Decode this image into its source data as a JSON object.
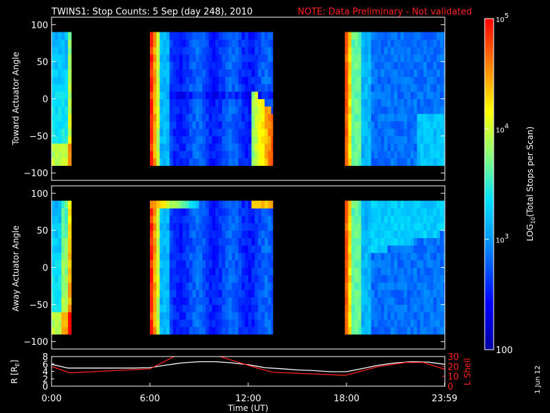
{
  "title": {
    "main": "TWINS1: Stop Counts:  5 Sep (day 248), 2010",
    "note": "NOTE: Data Preliminary - Not validated",
    "note_color": "#ff2020"
  },
  "stamp": "1 Jun 12",
  "chart_data": [
    {
      "type": "heatmap",
      "panel": "toward",
      "ylabel": "Toward Actuator Angle",
      "ylim": [
        -110,
        110
      ],
      "yticks": [
        100,
        50,
        0,
        -50,
        -100
      ],
      "ytick_labels": [
        "100",
        "50",
        "0",
        "−50",
        "−100"
      ],
      "xlim_hours": [
        0,
        24
      ],
      "data_extent_deg": [
        -90,
        90
      ],
      "data_segments_hours": [
        [
          0,
          1.2
        ],
        [
          6.0,
          13.5
        ],
        [
          17.9,
          24.0
        ]
      ],
      "colormap": "rainbow",
      "scale": "log"
    },
    {
      "type": "heatmap",
      "panel": "away",
      "ylabel": "Away Actuator Angle",
      "ylim": [
        -110,
        110
      ],
      "yticks": [
        100,
        50,
        0,
        -50,
        -100
      ],
      "ytick_labels": [
        "100",
        "50",
        "0",
        "−50",
        "−100"
      ],
      "xlim_hours": [
        0,
        24
      ],
      "data_extent_deg": [
        -90,
        90
      ],
      "data_segments_hours": [
        [
          0,
          1.2
        ],
        [
          6.0,
          13.5
        ],
        [
          17.9,
          24.0
        ]
      ],
      "colormap": "rainbow",
      "scale": "log"
    },
    {
      "type": "line",
      "panel": "orbit",
      "xlabel": "Time (UT)",
      "xticks_hours": [
        0,
        6,
        12,
        18,
        23.983
      ],
      "xtick_labels": [
        "0:00",
        "6:00",
        "12:00",
        "18:00",
        "23:59"
      ],
      "left_axis": {
        "label": "R [R",
        "label_sub": "E",
        "label_end": "]",
        "ylim": [
          0,
          8
        ],
        "ticks": [
          0,
          2,
          4,
          6,
          8
        ],
        "tick_labels": [
          "0",
          "2",
          "4",
          "6",
          "8"
        ]
      },
      "right_axis": {
        "label": "L Shell",
        "ylim": [
          0,
          30
        ],
        "ticks": [
          0,
          10,
          20,
          30
        ],
        "tick_labels": [
          "0",
          "10",
          "20",
          "30"
        ],
        "color": "#ff2020"
      },
      "series": [
        {
          "axis": "left",
          "color": "#ffffff",
          "x": [
            0,
            1,
            2,
            3,
            4,
            5,
            6,
            7,
            8,
            9,
            10,
            11,
            12,
            13,
            14,
            15,
            16,
            17,
            18,
            19,
            20,
            21,
            22,
            23,
            24
          ],
          "y": [
            5.9,
            4.9,
            4.9,
            4.9,
            4.9,
            4.9,
            5.0,
            5.7,
            6.3,
            6.6,
            6.6,
            6.3,
            5.8,
            5.0,
            4.7,
            4.4,
            4.2,
            3.9,
            3.9,
            4.8,
            5.7,
            6.3,
            6.6,
            6.5,
            5.9
          ]
        },
        {
          "axis": "right",
          "color": "#ff2020",
          "x": [
            0,
            1.1,
            6.0,
            7.6,
            10.1,
            12.2,
            13.5,
            17.9,
            20.0,
            21.6,
            22.7,
            24.0
          ],
          "y": [
            20,
            13.5,
            17.5,
            31,
            31,
            20,
            14,
            11,
            20,
            24,
            24,
            17
          ]
        }
      ]
    }
  ],
  "colorbar": {
    "label": "LOG",
    "label_sub": "10",
    "label_end": "(Total Stops per Scan)",
    "range": [
      100,
      100000
    ],
    "scale": "log",
    "tick_labels": [
      {
        "base": "10",
        "exp": "5",
        "value": 100000
      },
      {
        "base": "10",
        "exp": "4",
        "value": 10000
      },
      {
        "base": "10",
        "exp": "3",
        "value": 1000
      },
      {
        "base": "100",
        "exp": "",
        "value": 100
      }
    ]
  }
}
